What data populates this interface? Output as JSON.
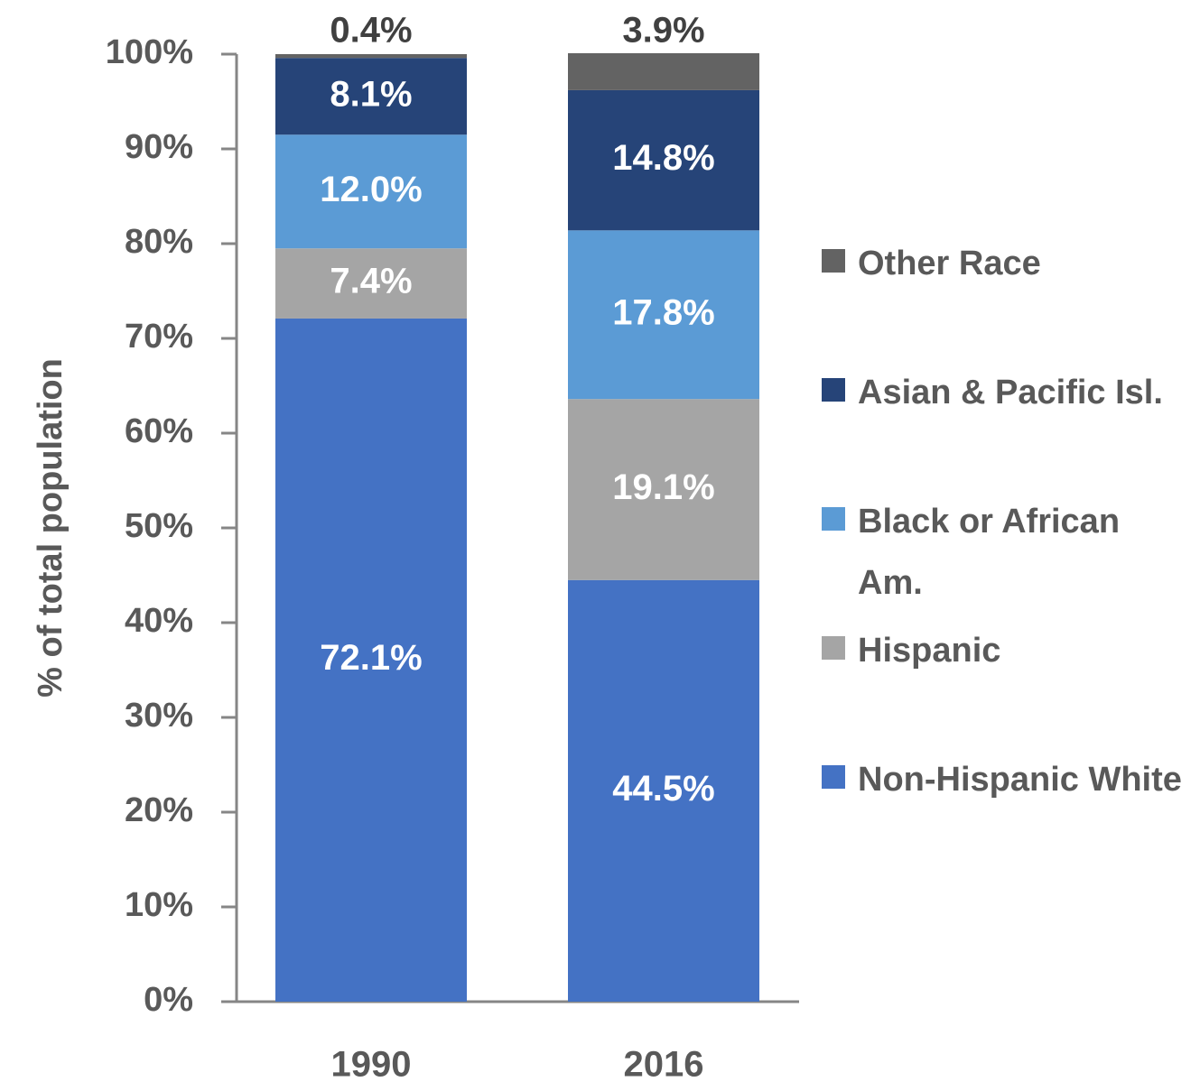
{
  "chart_data": {
    "type": "stacked_bar",
    "y_label": "% of total population",
    "categories": [
      "1990",
      "2016"
    ],
    "series": [
      {
        "name": "Non-Hispanic White",
        "color": "#4472c4",
        "values": [
          72.1,
          44.5
        ],
        "value_labels": [
          "72.1%",
          "44.5%"
        ]
      },
      {
        "name": "Hispanic",
        "color": "#a5a5a5",
        "values": [
          7.4,
          19.1
        ],
        "value_labels": [
          "7.4%",
          "19.1%"
        ]
      },
      {
        "name": "Black or African Am.",
        "color": "#5b9bd5",
        "values": [
          12.0,
          17.8
        ],
        "value_labels": [
          "12.0%",
          "17.8%"
        ]
      },
      {
        "name": "Asian & Pacific Isl.",
        "color": "#264478",
        "values": [
          8.1,
          14.8
        ],
        "value_labels": [
          "8.1%",
          "14.8%"
        ]
      },
      {
        "name": "Other Race",
        "color": "#636363",
        "values": [
          0.4,
          3.9
        ],
        "value_labels": [
          "0.4%",
          "3.9%"
        ]
      }
    ],
    "ylim": [
      0,
      100
    ],
    "yticks": [
      {
        "value": 0,
        "label": "0%"
      },
      {
        "value": 10,
        "label": "10%"
      },
      {
        "value": 20,
        "label": "20%"
      },
      {
        "value": 30,
        "label": "30%"
      },
      {
        "value": 40,
        "label": "40%"
      },
      {
        "value": 50,
        "label": "50%"
      },
      {
        "value": 60,
        "label": "60%"
      },
      {
        "value": 70,
        "label": "70%"
      },
      {
        "value": 80,
        "label": "80%"
      },
      {
        "value": 90,
        "label": "90%"
      },
      {
        "value": 100,
        "label": "100%"
      }
    ],
    "legend": "right"
  }
}
